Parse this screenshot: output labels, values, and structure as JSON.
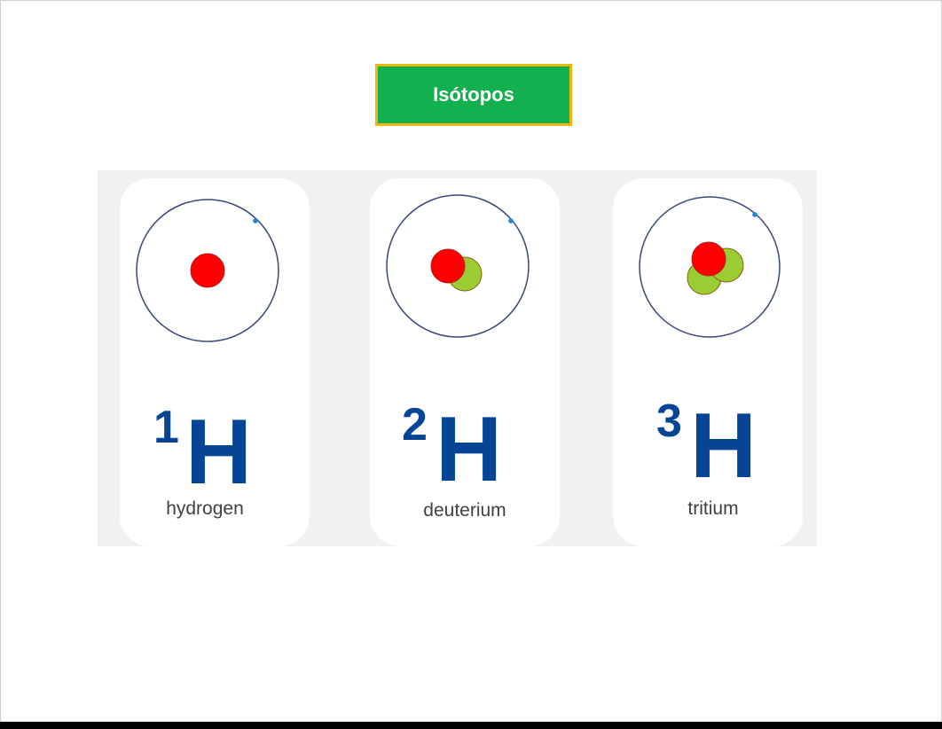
{
  "title": "Isótopos",
  "isotopes": [
    {
      "mass_number": "1",
      "symbol": "H",
      "name": "hydrogen",
      "protons": 1,
      "neutrons": 0,
      "electrons": 1
    },
    {
      "mass_number": "2",
      "symbol": "H",
      "name": "deuterium",
      "protons": 1,
      "neutrons": 1,
      "electrons": 1
    },
    {
      "mass_number": "3",
      "symbol": "H",
      "name": "tritium",
      "protons": 1,
      "neutrons": 2,
      "electrons": 1
    }
  ],
  "colors": {
    "title_background": "#12b04f",
    "title_border": "#f2b705",
    "symbol": "#064595",
    "proton": "#ff0000",
    "neutron": "#9acd32",
    "electron": "#1e88d8",
    "orbit": "#3a4a7a",
    "panel_background": "#f1f1f1"
  }
}
